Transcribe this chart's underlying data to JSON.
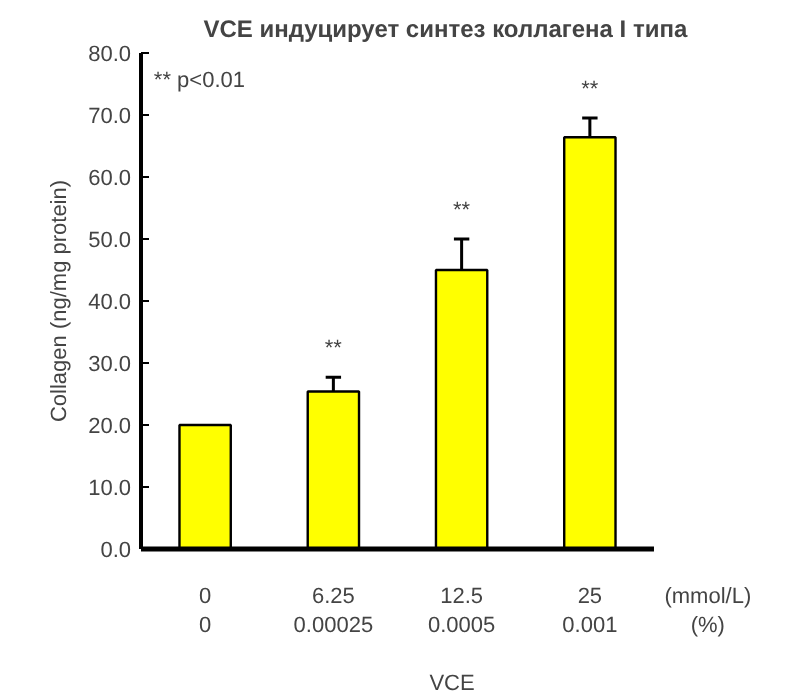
{
  "chart_data": {
    "type": "bar",
    "title": "VCE  индуцирует  синтез коллагена I типа",
    "xlabel": "VCE",
    "ylabel": "Collagen (ng/mg protein)",
    "categories": [
      "0\n0",
      "6.25\n0.00025",
      "12.5\n0.0005",
      "25\n0.001"
    ],
    "values": [
      20.0,
      25.4,
      45.0,
      66.4
    ],
    "errors": [
      null,
      [
        25.4,
        27.7
      ],
      [
        45.0,
        50.0
      ],
      [
        66.4,
        69.5
      ]
    ],
    "color": "#ffff00",
    "ylim": [
      0,
      80
    ],
    "yticks": [
      {
        "value": 0,
        "label": "0.0"
      },
      {
        "value": 10,
        "label": "10.0"
      },
      {
        "value": 20,
        "label": "20.0"
      },
      {
        "value": 30,
        "label": "30.0"
      },
      {
        "value": 40,
        "label": "40.0"
      },
      {
        "value": 50,
        "label": "50.0"
      },
      {
        "value": 60,
        "label": "60.0"
      },
      {
        "value": 70,
        "label": "70.0"
      },
      {
        "value": 80,
        "label": "80.0"
      }
    ],
    "grid": false,
    "annotations": [
      "** p<0.01",
      "(mmol/L)",
      "(%)",
      {
        "text": "**",
        "x": "6.25\n0.00025",
        "y": 27.7
      },
      {
        "text": "**",
        "x": "12.5\n0.0005",
        "y": 50.0
      },
      {
        "text": "**",
        "x": "25\n0.001",
        "y": 69.5
      }
    ]
  }
}
